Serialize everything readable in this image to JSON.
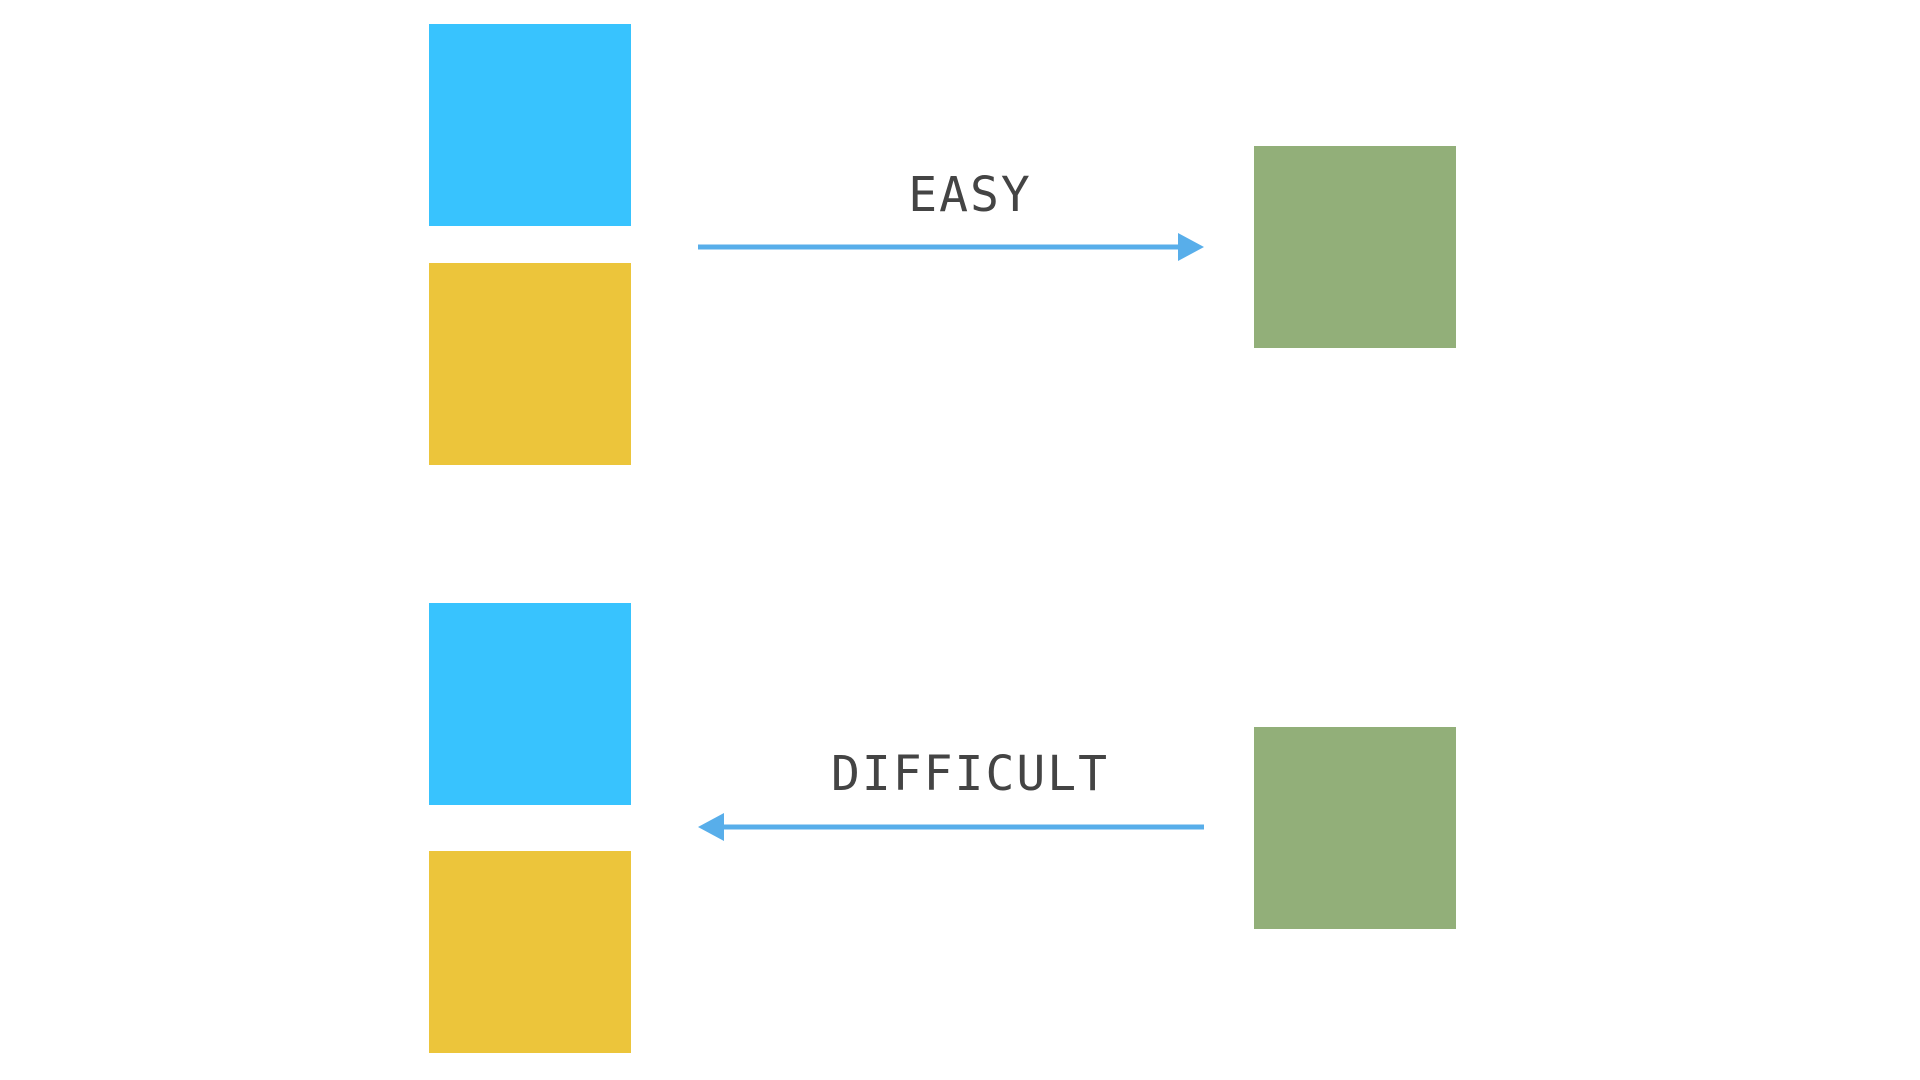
{
  "colors": {
    "blue": "#38c3fe",
    "yellow": "#ecc53b",
    "green": "#92af79",
    "arrow": "#58aeea",
    "text": "#444444"
  },
  "top": {
    "label": "EASY",
    "direction": "left-to-right"
  },
  "bottom": {
    "label": "DIFFICULT",
    "direction": "right-to-left"
  }
}
